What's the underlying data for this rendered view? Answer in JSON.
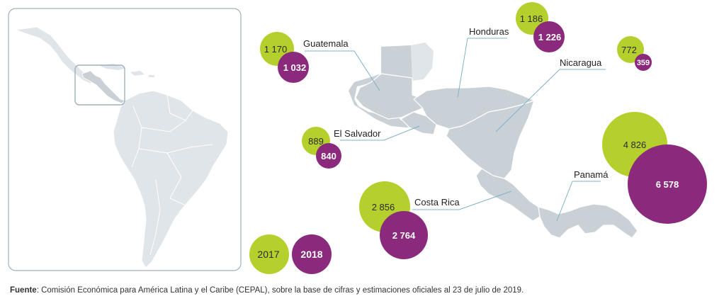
{
  "colors": {
    "year_2017": "#b5cf2c",
    "year_2018": "#8b2a7d",
    "land": "#c9d1d6",
    "land_light": "#dfe5e8",
    "border": "#ffffff",
    "leader_line": "#7fb2c9",
    "frame": "#9fb1bb"
  },
  "legend": {
    "year_2017": "2017",
    "year_2018": "2018"
  },
  "countries": [
    {
      "name": "Guatemala",
      "v2017": "1 170",
      "v2018": "1 032",
      "value_2017": 1170,
      "value_2018": 1032
    },
    {
      "name": "Honduras",
      "v2017": "1 186",
      "v2018": "1 226",
      "value_2017": 1186,
      "value_2018": 1226
    },
    {
      "name": "Nicaragua",
      "v2017": "772",
      "v2018": "359",
      "value_2017": 772,
      "value_2018": 359
    },
    {
      "name": "El Salvador",
      "v2017": "889",
      "v2018": "840",
      "value_2017": 889,
      "value_2018": 840
    },
    {
      "name": "Costa Rica",
      "v2017": "2 856",
      "v2018": "2 764",
      "value_2017": 2856,
      "value_2018": 2764
    },
    {
      "name": "Panamá",
      "v2017": "4 826",
      "v2018": "6 578",
      "value_2017": 4826,
      "value_2018": 6578
    }
  ],
  "source": {
    "label": "Fuente",
    "text": ": Comisión Económica para América Latina y el Caribe (CEPAL), sobre la base de cifras y estimaciones oficiales al 23 de julio de 2019."
  }
}
